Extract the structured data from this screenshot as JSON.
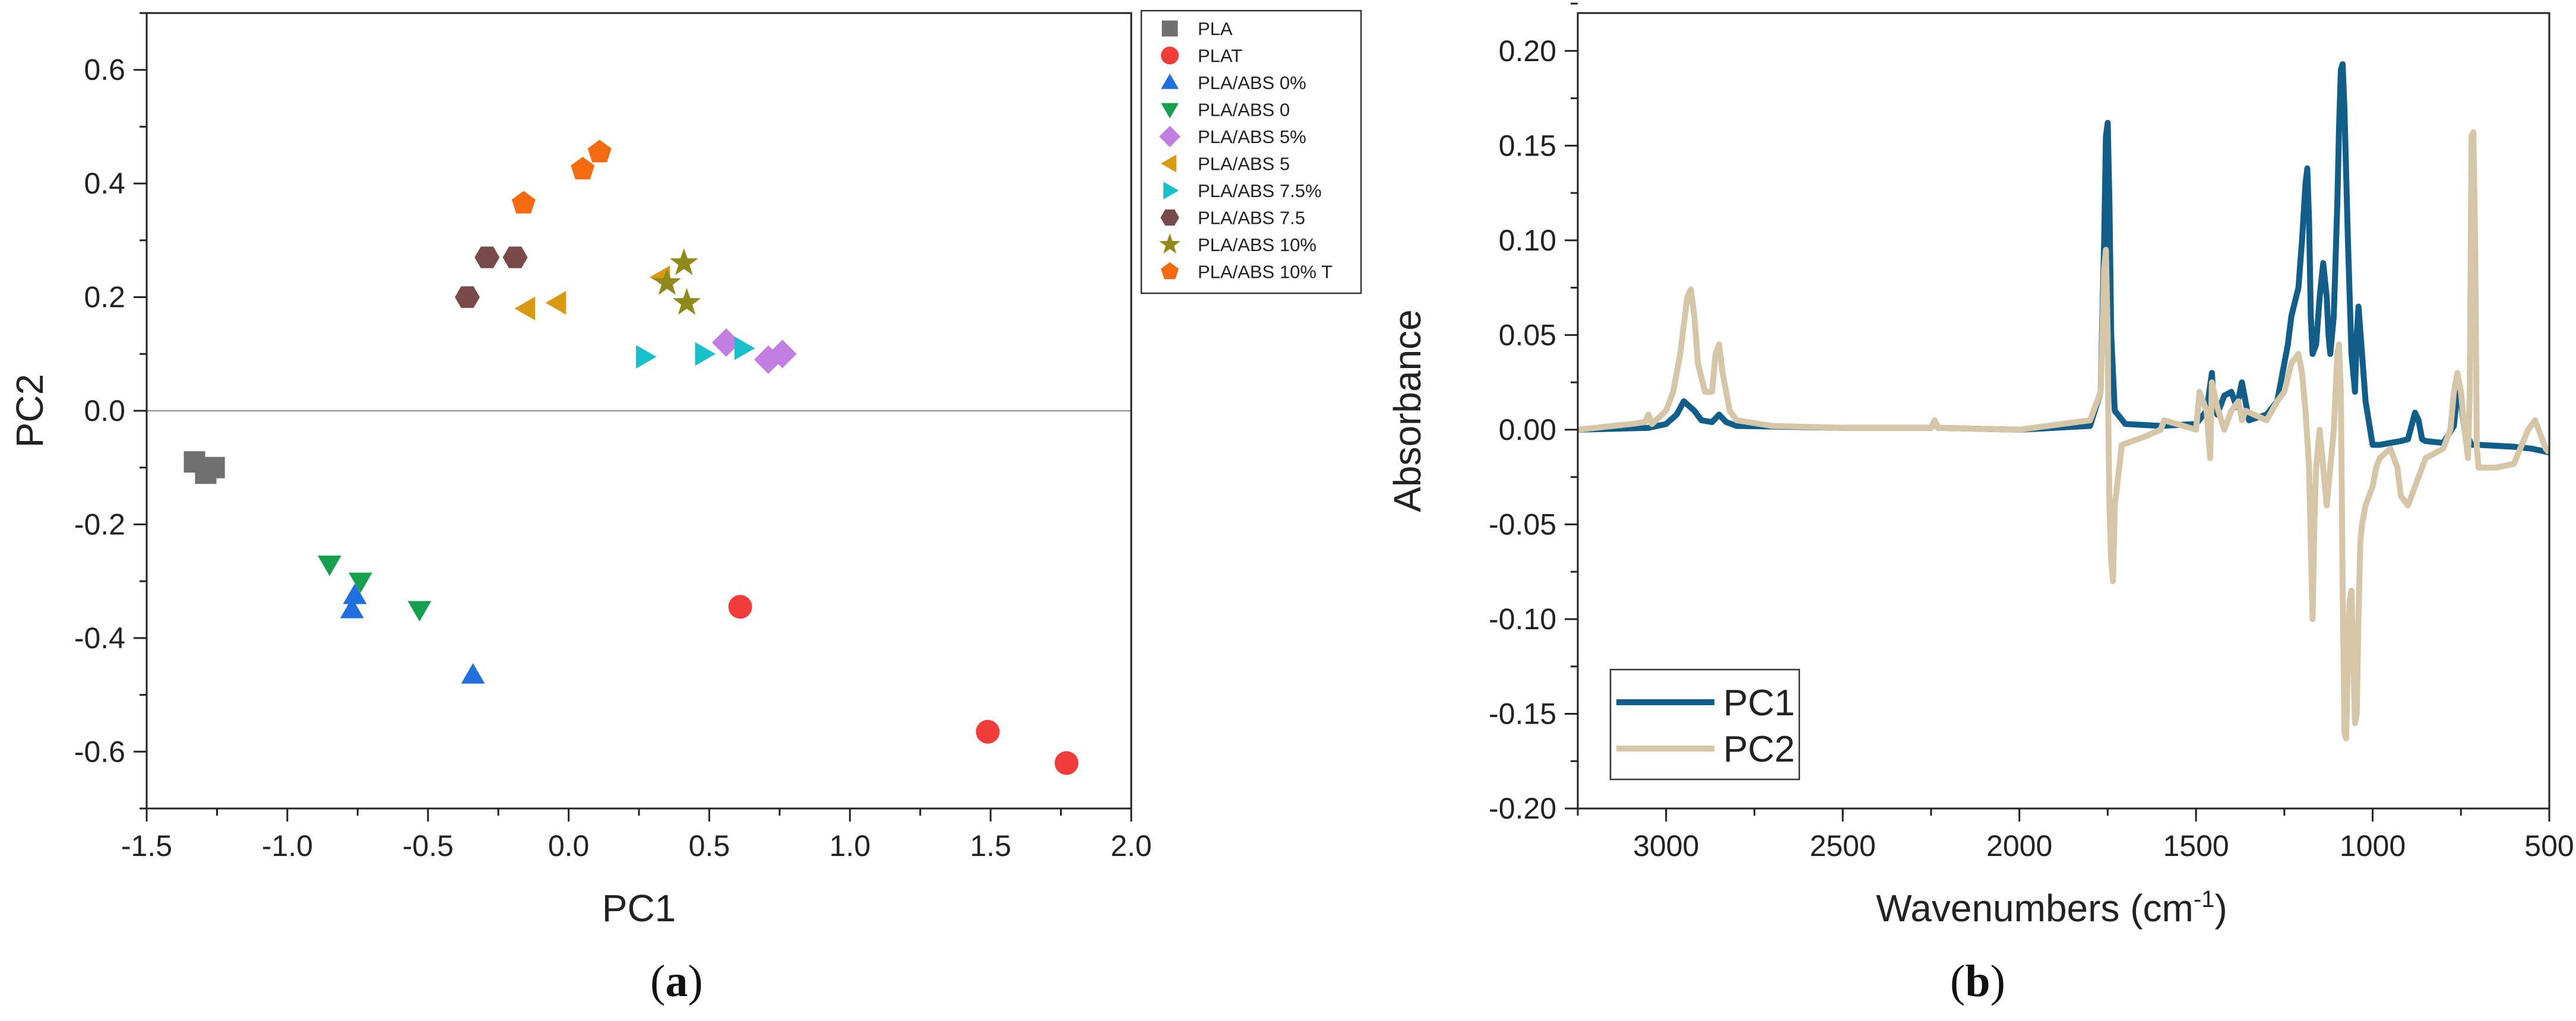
{
  "chart_data": [
    {
      "type": "scatter",
      "panel_label": "a",
      "xlabel": "PC1",
      "ylabel": "PC2",
      "xlim": [
        -1.5,
        2.0
      ],
      "ylim": [
        -0.7,
        0.7
      ],
      "xticks": [
        -1.5,
        -1.0,
        -0.5,
        0.0,
        0.5,
        1.0,
        1.5,
        2.0
      ],
      "yticks": [
        -0.6,
        -0.4,
        -0.2,
        0.0,
        0.2,
        0.4,
        0.6
      ],
      "xtick_labels": [
        "-1.5",
        "-1.0",
        "-0.5",
        "0.0",
        "0.5",
        "1.0",
        "1.5",
        "2.0"
      ],
      "ytick_labels": [
        "-0.6",
        "-0.4",
        "-0.2",
        "0.0",
        "0.2",
        "0.4",
        "0.6"
      ],
      "zero_line": true,
      "legend_position": "top-right-outside",
      "series": [
        {
          "name": "PLA",
          "marker": "square",
          "color": "#707070",
          "points": [
            [
              -1.33,
              -0.09
            ],
            [
              -1.29,
              -0.11
            ],
            [
              -1.26,
              -0.1
            ]
          ]
        },
        {
          "name": "PLAT",
          "marker": "circle",
          "color": "#f23c3c",
          "points": [
            [
              0.61,
              -0.345
            ],
            [
              1.49,
              -0.565
            ],
            [
              1.77,
              -0.62
            ]
          ]
        },
        {
          "name": "PLA/ABS 0%",
          "marker": "triangle-up",
          "color": "#1f6fde",
          "points": [
            [
              -0.77,
              -0.35
            ],
            [
              -0.76,
              -0.325
            ],
            [
              -0.34,
              -0.465
            ]
          ]
        },
        {
          "name": "PLA/ABS 0",
          "marker": "triangle-down",
          "color": "#17a14f",
          "points": [
            [
              -0.85,
              -0.27
            ],
            [
              -0.74,
              -0.3
            ],
            [
              -0.53,
              -0.35
            ]
          ]
        },
        {
          "name": "PLA/ABS 5%",
          "marker": "diamond",
          "color": "#c27ee0",
          "points": [
            [
              0.56,
              0.12
            ],
            [
              0.71,
              0.09
            ],
            [
              0.76,
              0.1
            ]
          ]
        },
        {
          "name": "PLA/ABS 5",
          "marker": "triangle-left",
          "color": "#d99a12",
          "points": [
            [
              -0.15,
              0.18
            ],
            [
              -0.04,
              0.19
            ],
            [
              0.33,
              0.235
            ]
          ]
        },
        {
          "name": "PLA/ABS 7.5%",
          "marker": "triangle-right",
          "color": "#17c1cc",
          "points": [
            [
              0.27,
              0.095
            ],
            [
              0.48,
              0.1
            ],
            [
              0.62,
              0.11
            ]
          ]
        },
        {
          "name": "PLA/ABS 7.5",
          "marker": "hexagon",
          "color": "#7a4a4a",
          "points": [
            [
              -0.36,
              0.2
            ],
            [
              -0.29,
              0.27
            ],
            [
              -0.19,
              0.27
            ]
          ]
        },
        {
          "name": "PLA/ABS 10%",
          "marker": "star",
          "color": "#8f8a1a",
          "points": [
            [
              0.35,
              0.225
            ],
            [
              0.41,
              0.26
            ],
            [
              0.42,
              0.19
            ]
          ]
        },
        {
          "name": "PLA/ABS 10% T",
          "marker": "pentagon",
          "color": "#f56a0f",
          "points": [
            [
              -0.16,
              0.365
            ],
            [
              0.05,
              0.425
            ],
            [
              0.11,
              0.455
            ]
          ]
        }
      ]
    },
    {
      "type": "line",
      "panel_label": "b",
      "xlabel": "Wavenumbers (cm",
      "xlabel_sup": "-1",
      "xlabel_close": ")",
      "ylabel": "Absorbance",
      "xlim": [
        3250,
        500
      ],
      "x_reversed": true,
      "ylim": [
        -0.2,
        0.22
      ],
      "xticks": [
        3000,
        2500,
        2000,
        1500,
        1000,
        500
      ],
      "yticks": [
        -0.2,
        -0.15,
        -0.1,
        -0.05,
        0.0,
        0.05,
        0.1,
        0.15,
        0.2
      ],
      "xtick_labels": [
        "3000",
        "2500",
        "2000",
        "1500",
        "1000",
        "500"
      ],
      "ytick_labels": [
        "-0.20",
        "-0.15",
        "-0.10",
        "-0.05",
        "0.00",
        "0.05",
        "0.10",
        "0.15",
        "0.20"
      ],
      "legend_position": "bottom-left",
      "series": [
        {
          "name": "PC1",
          "color": "#115e8a",
          "x": [
            3250,
            3050,
            3000,
            2970,
            2950,
            2920,
            2900,
            2870,
            2850,
            2830,
            2800,
            2500,
            2250,
            2240,
            2230,
            2000,
            1800,
            1770,
            1760,
            1755,
            1750,
            1745,
            1740,
            1730,
            1700,
            1600,
            1500,
            1470,
            1455,
            1450,
            1440,
            1420,
            1400,
            1385,
            1370,
            1360,
            1350,
            1300,
            1270,
            1255,
            1240,
            1230,
            1210,
            1200,
            1190,
            1185,
            1180,
            1175,
            1170,
            1160,
            1150,
            1140,
            1130,
            1125,
            1120,
            1110,
            1100,
            1095,
            1090,
            1085,
            1080,
            1070,
            1060,
            1050,
            1045,
            1040,
            1030,
            1020,
            1000,
            980,
            950,
            920,
            900,
            880,
            870,
            860,
            850,
            800,
            770,
            760,
            750,
            740,
            720,
            700,
            600,
            550,
            500
          ],
          "y": [
            0.0,
            0.001,
            0.003,
            0.008,
            0.015,
            0.01,
            0.005,
            0.004,
            0.008,
            0.004,
            0.002,
            0.001,
            0.001,
            0.004,
            0.001,
            0.0,
            0.002,
            0.02,
            0.1,
            0.155,
            0.162,
            0.12,
            0.05,
            0.01,
            0.003,
            0.002,
            0.003,
            0.01,
            0.03,
            0.015,
            0.008,
            0.018,
            0.02,
            0.012,
            0.025,
            0.015,
            0.005,
            0.008,
            0.015,
            0.03,
            0.045,
            0.06,
            0.075,
            0.1,
            0.13,
            0.138,
            0.11,
            0.06,
            0.04,
            0.045,
            0.07,
            0.088,
            0.07,
            0.05,
            0.04,
            0.06,
            0.12,
            0.16,
            0.19,
            0.193,
            0.17,
            0.1,
            0.04,
            0.02,
            0.05,
            0.065,
            0.04,
            0.015,
            -0.008,
            -0.008,
            -0.007,
            -0.006,
            -0.005,
            0.009,
            0.005,
            -0.005,
            -0.006,
            -0.007,
            0.002,
            0.02,
            0.015,
            0.0,
            -0.008,
            -0.008,
            -0.009,
            -0.01,
            -0.012
          ]
        },
        {
          "name": "PC2",
          "color": "#d6c6a8",
          "x": [
            3250,
            3100,
            3060,
            3050,
            3040,
            3000,
            2980,
            2960,
            2940,
            2930,
            2920,
            2910,
            2890,
            2870,
            2860,
            2850,
            2840,
            2820,
            2800,
            2700,
            2500,
            2250,
            2240,
            2230,
            2000,
            1800,
            1770,
            1765,
            1760,
            1755,
            1750,
            1748,
            1745,
            1740,
            1735,
            1730,
            1710,
            1650,
            1600,
            1590,
            1500,
            1490,
            1470,
            1460,
            1455,
            1440,
            1420,
            1400,
            1380,
            1370,
            1360,
            1300,
            1270,
            1250,
            1230,
            1210,
            1200,
            1190,
            1180,
            1175,
            1170,
            1165,
            1160,
            1150,
            1140,
            1130,
            1120,
            1110,
            1100,
            1095,
            1090,
            1085,
            1080,
            1075,
            1070,
            1065,
            1060,
            1055,
            1050,
            1045,
            1040,
            1035,
            1030,
            1020,
            1000,
            990,
            980,
            950,
            930,
            920,
            900,
            880,
            860,
            850,
            800,
            780,
            770,
            760,
            750,
            740,
            730,
            725,
            720,
            715,
            710,
            705,
            700,
            690,
            650,
            600,
            560,
            540,
            520,
            510,
            500
          ],
          "y": [
            0.0,
            0.003,
            0.004,
            0.008,
            0.003,
            0.01,
            0.02,
            0.04,
            0.07,
            0.074,
            0.06,
            0.035,
            0.02,
            0.02,
            0.04,
            0.045,
            0.03,
            0.01,
            0.005,
            0.002,
            0.001,
            0.001,
            0.005,
            0.001,
            0.0,
            0.005,
            0.02,
            0.05,
            0.085,
            0.095,
            0.05,
            0.0,
            -0.04,
            -0.07,
            -0.08,
            -0.04,
            -0.008,
            -0.004,
            0.0,
            0.005,
            0.0,
            0.02,
            0.01,
            -0.015,
            0.025,
            0.012,
            0.0,
            0.01,
            0.015,
            0.005,
            0.01,
            0.005,
            0.015,
            0.02,
            0.035,
            0.04,
            0.03,
            0.01,
            -0.02,
            -0.06,
            -0.1,
            -0.05,
            -0.02,
            0.0,
            -0.02,
            -0.04,
            -0.02,
            0.0,
            0.04,
            0.045,
            0.02,
            -0.08,
            -0.16,
            -0.163,
            -0.12,
            -0.09,
            -0.085,
            -0.12,
            -0.155,
            -0.15,
            -0.1,
            -0.06,
            -0.05,
            -0.04,
            -0.03,
            -0.02,
            -0.015,
            -0.01,
            -0.02,
            -0.035,
            -0.04,
            -0.03,
            -0.02,
            -0.015,
            -0.01,
            0.0,
            0.02,
            0.03,
            0.02,
            0.0,
            -0.015,
            0.02,
            0.155,
            0.157,
            0.1,
            -0.01,
            -0.02,
            -0.02,
            -0.02,
            -0.018,
            0.0,
            0.005,
            -0.005,
            -0.01,
            -0.012
          ]
        }
      ]
    }
  ]
}
